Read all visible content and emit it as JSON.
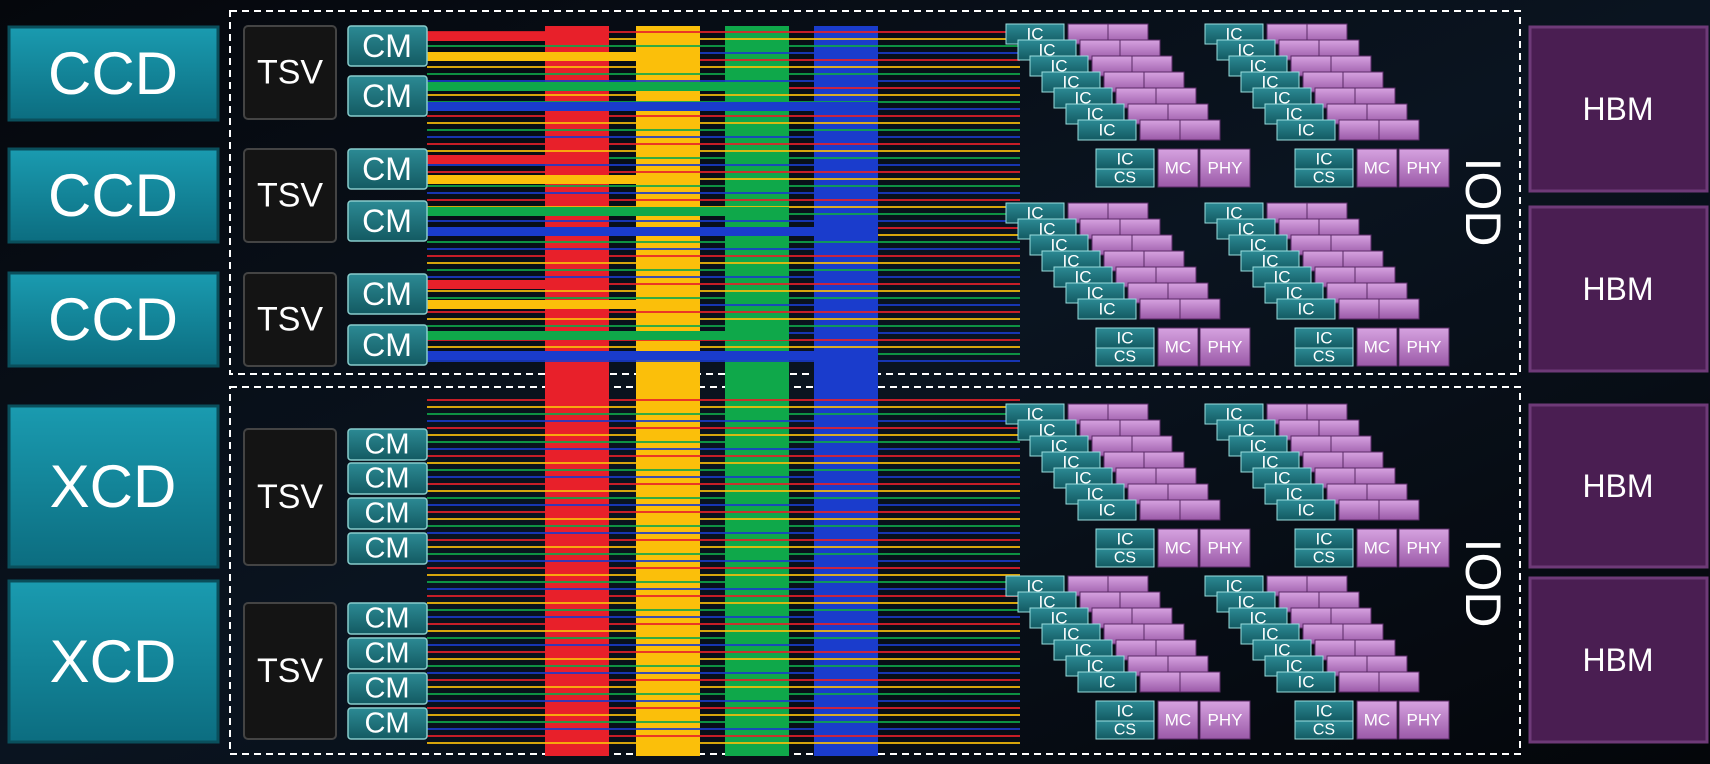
{
  "dies": [
    {
      "label": "CCD"
    },
    {
      "label": "CCD"
    },
    {
      "label": "CCD"
    },
    {
      "label": "XCD"
    },
    {
      "label": "XCD"
    }
  ],
  "tsv": [
    "TSV",
    "TSV",
    "TSV",
    "TSV",
    "TSV"
  ],
  "cm": [
    [
      "CM",
      "CM"
    ],
    [
      "CM",
      "CM"
    ],
    [
      "CM",
      "CM"
    ],
    [
      "CM",
      "CM",
      "CM",
      "CM"
    ],
    [
      "CM",
      "CM",
      "CM",
      "CM"
    ]
  ],
  "iod": [
    {
      "label": "IOD",
      "clusters": [
        {
          "stack": [
            "IC",
            "IC",
            "IC",
            "IC",
            "IC",
            "IC",
            "IC"
          ],
          "front": {
            "ic": "IC",
            "cs": "CS",
            "mc": "MC",
            "phy": "PHY"
          }
        },
        {
          "stack": [
            "IC",
            "IC",
            "IC",
            "IC",
            "IC",
            "IC",
            "IC"
          ],
          "front": {
            "ic": "IC",
            "cs": "CS",
            "mc": "MC",
            "phy": "PHY"
          }
        },
        {
          "stack": [
            "IC",
            "IC",
            "IC",
            "IC",
            "IC",
            "IC",
            "IC"
          ],
          "front": {
            "ic": "IC",
            "cs": "CS",
            "mc": "MC",
            "phy": "PHY"
          }
        },
        {
          "stack": [
            "IC",
            "IC",
            "IC",
            "IC",
            "IC",
            "IC",
            "IC"
          ],
          "front": {
            "ic": "IC",
            "cs": "CS",
            "mc": "MC",
            "phy": "PHY"
          }
        }
      ]
    },
    {
      "label": "IOD",
      "clusters": [
        {
          "stack": [
            "IC",
            "IC",
            "IC",
            "IC",
            "IC",
            "IC",
            "IC"
          ],
          "front": {
            "ic": "IC",
            "cs": "CS",
            "mc": "MC",
            "phy": "PHY"
          }
        },
        {
          "stack": [
            "IC",
            "IC",
            "IC",
            "IC",
            "IC",
            "IC",
            "IC"
          ],
          "front": {
            "ic": "IC",
            "cs": "CS",
            "mc": "MC",
            "phy": "PHY"
          }
        },
        {
          "stack": [
            "IC",
            "IC",
            "IC",
            "IC",
            "IC",
            "IC",
            "IC"
          ],
          "front": {
            "ic": "IC",
            "cs": "CS",
            "mc": "MC",
            "phy": "PHY"
          }
        },
        {
          "stack": [
            "IC",
            "IC",
            "IC",
            "IC",
            "IC",
            "IC",
            "IC"
          ],
          "front": {
            "ic": "IC",
            "cs": "CS",
            "mc": "MC",
            "phy": "PHY"
          }
        }
      ]
    }
  ],
  "hbm": [
    "HBM",
    "HBM",
    "HBM",
    "HBM"
  ]
}
